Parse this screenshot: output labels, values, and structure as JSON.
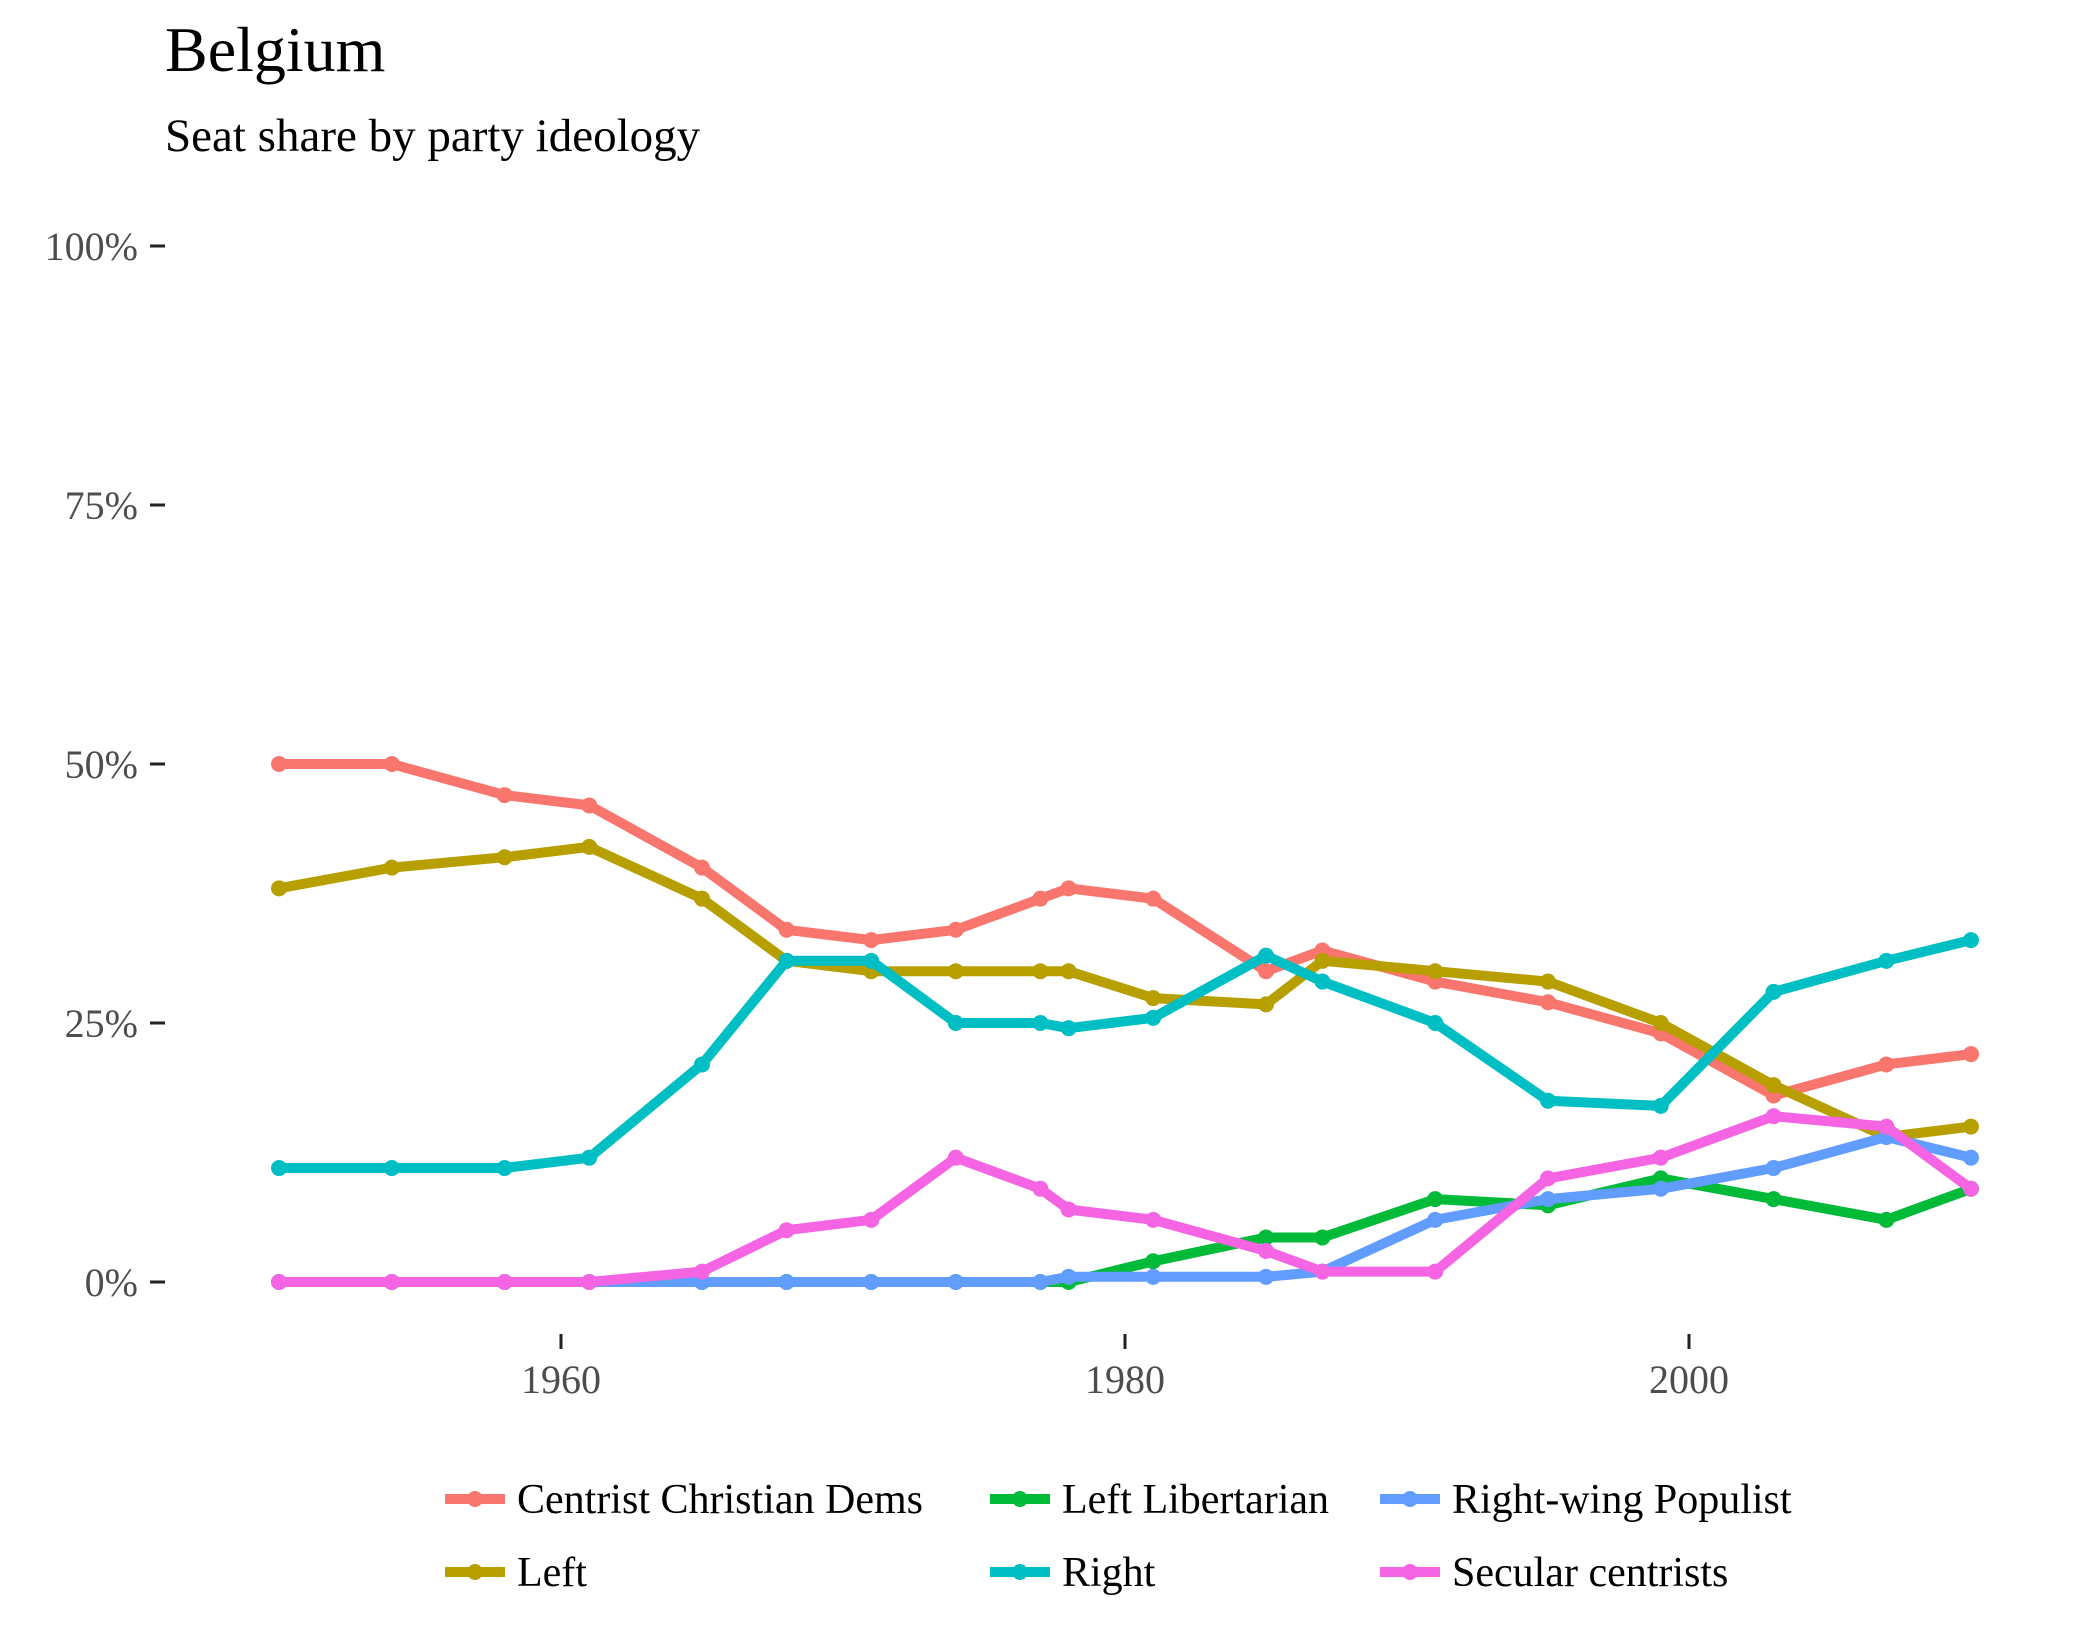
{
  "title": "Belgium",
  "subtitle": "Seat share by party ideology",
  "chart_data": {
    "type": "line",
    "title": "Belgium",
    "subtitle": "Seat share by party ideology",
    "xlabel": "",
    "ylabel": "",
    "xlim": [
      1948.9,
      2011.1
    ],
    "ylim": [
      0,
      100
    ],
    "x_ticks": [
      1960,
      1980,
      2000
    ],
    "x_tick_labels": [
      "1960",
      "1980",
      "2000"
    ],
    "y_ticks": [
      0,
      25,
      50,
      75,
      100
    ],
    "y_tick_labels": [
      "0%",
      "25%",
      "50%",
      "75%",
      "100%"
    ],
    "grid": false,
    "legend_position": "bottom",
    "x": [
      1950,
      1954,
      1958,
      1961,
      1965,
      1968,
      1971,
      1974,
      1977,
      1978,
      1981,
      1985,
      1987,
      1991,
      1995,
      1999,
      2003,
      2007,
      2010
    ],
    "series": [
      {
        "name": "Centrist Christian Dems",
        "color": "#F8766D",
        "values": [
          50,
          50,
          47,
          46,
          40,
          34,
          33,
          34,
          37,
          38,
          37,
          30,
          32,
          29,
          27,
          24,
          18,
          21,
          22
        ]
      },
      {
        "name": "Left",
        "color": "#B79F00",
        "values": [
          38,
          40,
          41,
          42,
          37,
          31,
          30,
          30,
          30,
          30,
          27.4,
          26.8,
          31,
          30,
          29,
          25,
          19,
          14,
          15
        ]
      },
      {
        "name": "Left Libertarian",
        "color": "#00BA38",
        "values": [
          0,
          0,
          0,
          0,
          0,
          0,
          0,
          0,
          0,
          0,
          2,
          4.3,
          4.3,
          8,
          7.4,
          10,
          8,
          6,
          9
        ]
      },
      {
        "name": "Right",
        "color": "#00BFC4",
        "values": [
          11,
          11,
          11,
          12,
          21,
          31,
          31,
          25,
          25,
          24.5,
          25.5,
          31.5,
          29,
          25,
          17.5,
          17,
          28,
          31,
          33
        ]
      },
      {
        "name": "Right-wing Populist",
        "color": "#619CFF",
        "values": [
          0,
          0,
          0,
          0,
          0,
          0,
          0,
          0,
          0,
          0.5,
          0.5,
          0.5,
          1,
          6,
          8,
          9,
          11,
          14,
          12
        ]
      },
      {
        "name": "Secular centrists",
        "color": "#F564E3",
        "values": [
          0,
          0,
          0,
          0,
          1,
          5,
          6,
          12,
          9,
          7,
          6,
          3,
          1,
          1,
          10,
          12,
          16,
          15,
          9
        ]
      }
    ],
    "legend": [
      {
        "name": "Centrist Christian Dems",
        "color": "#F8766D"
      },
      {
        "name": "Left Libertarian",
        "color": "#00BA38"
      },
      {
        "name": "Right-wing Populist",
        "color": "#619CFF"
      },
      {
        "name": "Left",
        "color": "#B79F00"
      },
      {
        "name": "Right",
        "color": "#00BFC4"
      },
      {
        "name": "Secular centrists",
        "color": "#F564E3"
      }
    ]
  }
}
